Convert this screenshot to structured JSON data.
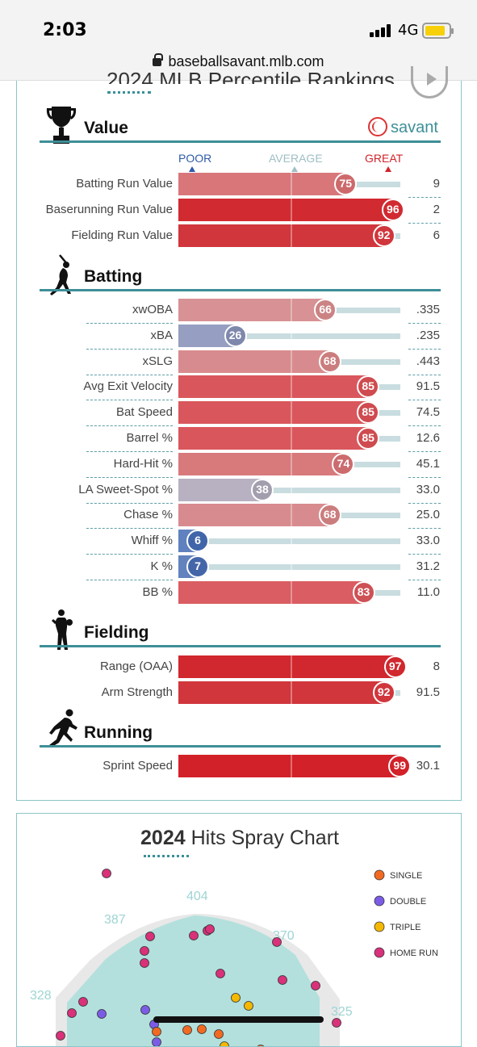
{
  "status_bar": {
    "time": "2:03",
    "network": "4G"
  },
  "browser": {
    "url": "baseballsavant.mlb.com"
  },
  "header": {
    "title_partial": "2024 MLB Percentile Rankings"
  },
  "brand": {
    "savant": "savant"
  },
  "scale_labels": {
    "poor": "POOR",
    "average": "AVERAGE",
    "great": "GREAT"
  },
  "colors": {
    "accent": "#3e8f98",
    "poor": "#2f5aa8",
    "great": "#d2232a",
    "track": "#c9dde0"
  },
  "sections": [
    {
      "key": "value",
      "title": "Value",
      "icon": "trophy-icon",
      "rows": [
        {
          "label": "Batting Run Value",
          "pct": 75,
          "value": "9"
        },
        {
          "label": "Baserunning Run Value",
          "pct": 96,
          "value": "2"
        },
        {
          "label": "Fielding Run Value",
          "pct": 92,
          "value": "6"
        }
      ]
    },
    {
      "key": "batting",
      "title": "Batting",
      "icon": "batter-icon",
      "rows": [
        {
          "label": "xwOBA",
          "pct": 66,
          "value": ".335"
        },
        {
          "label": "xBA",
          "pct": 26,
          "value": ".235"
        },
        {
          "label": "xSLG",
          "pct": 68,
          "value": ".443"
        },
        {
          "label": "Avg Exit Velocity",
          "pct": 85,
          "value": "91.5"
        },
        {
          "label": "Bat Speed",
          "pct": 85,
          "value": "74.5"
        },
        {
          "label": "Barrel %",
          "pct": 85,
          "value": "12.6"
        },
        {
          "label": "Hard-Hit %",
          "pct": 74,
          "value": "45.1"
        },
        {
          "label": "LA Sweet-Spot %",
          "pct": 38,
          "value": "33.0"
        },
        {
          "label": "Chase %",
          "pct": 68,
          "value": "25.0"
        },
        {
          "label": "Whiff %",
          "pct": 6,
          "value": "33.0"
        },
        {
          "label": "K %",
          "pct": 7,
          "value": "31.2"
        },
        {
          "label": "BB %",
          "pct": 83,
          "value": "11.0"
        }
      ]
    },
    {
      "key": "fielding",
      "title": "Fielding",
      "icon": "fielder-icon",
      "rows": [
        {
          "label": "Range (OAA)",
          "pct": 97,
          "value": "8"
        },
        {
          "label": "Arm Strength",
          "pct": 92,
          "value": "91.5"
        }
      ]
    },
    {
      "key": "running",
      "title": "Running",
      "icon": "runner-icon",
      "rows": [
        {
          "label": "Sprint Speed",
          "pct": 99,
          "value": "30.1"
        }
      ]
    }
  ],
  "spray": {
    "year": "2024",
    "title": "Hits Spray Chart",
    "distances": {
      "cf": "404",
      "lcf": "387",
      "rcf": "370",
      "lf": "328",
      "rf": "325"
    },
    "legend": [
      {
        "label": "SINGLE",
        "color": "#f26a22"
      },
      {
        "label": "DOUBLE",
        "color": "#7b5ce6"
      },
      {
        "label": "TRIPLE",
        "color": "#f5b800"
      },
      {
        "label": "HOME RUN",
        "color": "#d9317a"
      }
    ]
  }
}
